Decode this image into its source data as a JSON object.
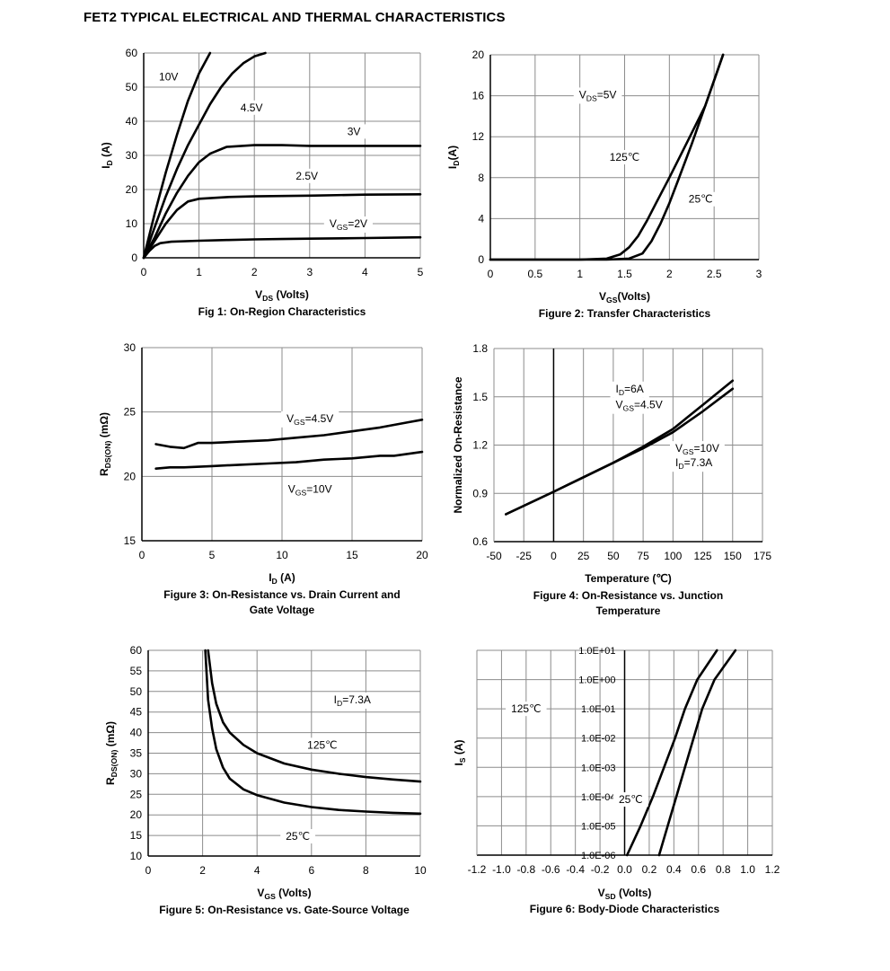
{
  "page": {
    "title": "FET2 TYPICAL ELECTRICAL AND THERMAL CHARACTERISTICS"
  },
  "chart_data": [
    {
      "id": "fig1",
      "type": "line",
      "caption": [
        "Fig 1: On-Region Characteristics"
      ],
      "xlabel": {
        "main": "V",
        "sub": "DS",
        "rest": " (Volts)"
      },
      "ylabel": {
        "main": "I",
        "sub": "D",
        "rest": " (A)"
      },
      "xlim": [
        0,
        5
      ],
      "ylim": [
        0,
        60
      ],
      "xticks": [
        0,
        1,
        2,
        3,
        4,
        5
      ],
      "yticks": [
        0,
        10,
        20,
        30,
        40,
        50,
        60
      ],
      "grid": true,
      "series": [
        {
          "values": [
            [
              0,
              0
            ],
            [
              0.2,
              13
            ],
            [
              0.4,
              25
            ],
            [
              0.6,
              36
            ],
            [
              0.8,
              46
            ],
            [
              1.0,
              54
            ],
            [
              1.2,
              61
            ]
          ]
        },
        {
          "values": [
            [
              0,
              0
            ],
            [
              0.2,
              9
            ],
            [
              0.4,
              18
            ],
            [
              0.6,
              26
            ],
            [
              0.8,
              33
            ],
            [
              1.0,
              39
            ],
            [
              1.2,
              45
            ],
            [
              1.4,
              50
            ],
            [
              1.6,
              54
            ],
            [
              1.8,
              57
            ],
            [
              2.0,
              59
            ],
            [
              2.2,
              60.5
            ]
          ]
        },
        {
          "values": [
            [
              0,
              0
            ],
            [
              0.2,
              6
            ],
            [
              0.4,
              13
            ],
            [
              0.6,
              19
            ],
            [
              0.8,
              24
            ],
            [
              1.0,
              28
            ],
            [
              1.2,
              30.5
            ],
            [
              1.5,
              32.5
            ],
            [
              2.0,
              33
            ],
            [
              2.5,
              33
            ],
            [
              3,
              32.8
            ],
            [
              4,
              32.8
            ],
            [
              5,
              32.8
            ]
          ]
        },
        {
          "values": [
            [
              0,
              0
            ],
            [
              0.2,
              5
            ],
            [
              0.4,
              10
            ],
            [
              0.6,
              14
            ],
            [
              0.8,
              16.5
            ],
            [
              1.0,
              17.3
            ],
            [
              1.5,
              17.8
            ],
            [
              2.0,
              18
            ],
            [
              3,
              18.2
            ],
            [
              4,
              18.5
            ],
            [
              5,
              18.6
            ]
          ]
        },
        {
          "values": [
            [
              0,
              0
            ],
            [
              0.1,
              2
            ],
            [
              0.2,
              3.5
            ],
            [
              0.3,
              4.3
            ],
            [
              0.5,
              4.7
            ],
            [
              1,
              5
            ],
            [
              1.5,
              5.2
            ],
            [
              2,
              5.4
            ],
            [
              2.5,
              5.5
            ],
            [
              3,
              5.6
            ],
            [
              4,
              5.8
            ],
            [
              5,
              6
            ]
          ]
        }
      ],
      "annotations": [
        {
          "text": "10V",
          "x": 0.45,
          "y": 53,
          "anchor": "middle"
        },
        {
          "text": "4.5V",
          "x": 1.95,
          "y": 44,
          "anchor": "middle"
        },
        {
          "text": "3V",
          "x": 3.8,
          "y": 37,
          "anchor": "middle"
        },
        {
          "text": "2.5V",
          "x": 2.95,
          "y": 24,
          "anchor": "middle"
        },
        {
          "main": "V",
          "sub": "GS",
          "rest": "=2V",
          "x": 3.7,
          "y": 10,
          "anchor": "middle"
        }
      ]
    },
    {
      "id": "fig2",
      "type": "line",
      "caption": [
        "Figure 2: Transfer Characteristics"
      ],
      "xlabel": {
        "main": "V",
        "sub": "GS",
        "rest": "(Volts)"
      },
      "ylabel": {
        "main": "I",
        "sub": "D",
        "rest": "(A)"
      },
      "xlim": [
        0,
        3
      ],
      "ylim": [
        0,
        20
      ],
      "xticks": [
        0,
        0.5,
        1,
        1.5,
        2,
        2.5,
        3
      ],
      "yticks": [
        0,
        4,
        8,
        12,
        16,
        20
      ],
      "grid": true,
      "series": [
        {
          "values": [
            [
              0,
              0
            ],
            [
              1.0,
              0
            ],
            [
              1.3,
              0.1
            ],
            [
              1.45,
              0.5
            ],
            [
              1.55,
              1.2
            ],
            [
              1.65,
              2.3
            ],
            [
              1.75,
              3.8
            ],
            [
              1.85,
              5.5
            ],
            [
              2.0,
              8
            ],
            [
              2.2,
              11.5
            ],
            [
              2.4,
              15
            ],
            [
              2.6,
              20
            ]
          ]
        },
        {
          "values": [
            [
              0,
              0
            ],
            [
              1.3,
              0
            ],
            [
              1.55,
              0.1
            ],
            [
              1.7,
              0.6
            ],
            [
              1.8,
              1.8
            ],
            [
              1.9,
              3.5
            ],
            [
              2.0,
              5.5
            ],
            [
              2.1,
              7.8
            ],
            [
              2.25,
              11.3
            ],
            [
              2.4,
              15
            ],
            [
              2.6,
              20
            ]
          ]
        }
      ],
      "annotations": [
        {
          "main": "V",
          "sub": "DS",
          "rest": "=5V",
          "x": 1.2,
          "y": 16.1,
          "anchor": "middle"
        },
        {
          "text": "125℃",
          "x": 1.5,
          "y": 10,
          "anchor": "middle"
        },
        {
          "text": "25℃",
          "x": 2.35,
          "y": 5.9,
          "anchor": "middle"
        }
      ]
    },
    {
      "id": "fig3",
      "type": "line",
      "caption": [
        "Figure 3: On-Resistance vs. Drain Current and",
        "Gate Voltage"
      ],
      "xlabel": {
        "main": "I",
        "sub": "D",
        "rest": " (A)"
      },
      "ylabel": {
        "main": "R",
        "sub": "DS(ON)",
        "rest": " (mΩ)"
      },
      "xlim": [
        0,
        20
      ],
      "ylim": [
        15,
        30
      ],
      "xticks": [
        0,
        5,
        10,
        15,
        20
      ],
      "yticks": [
        15,
        20,
        25,
        30
      ],
      "grid": true,
      "series": [
        {
          "values": [
            [
              1,
              22.5
            ],
            [
              2,
              22.3
            ],
            [
              3,
              22.2
            ],
            [
              4,
              22.6
            ],
            [
              5,
              22.6
            ],
            [
              7,
              22.7
            ],
            [
              9,
              22.8
            ],
            [
              11,
              23
            ],
            [
              13,
              23.2
            ],
            [
              15,
              23.5
            ],
            [
              17,
              23.8
            ],
            [
              19,
              24.2
            ],
            [
              20,
              24.4
            ]
          ]
        },
        {
          "values": [
            [
              1,
              20.6
            ],
            [
              2,
              20.7
            ],
            [
              3,
              20.7
            ],
            [
              5,
              20.8
            ],
            [
              7,
              20.9
            ],
            [
              9,
              21
            ],
            [
              11,
              21.1
            ],
            [
              13,
              21.3
            ],
            [
              15,
              21.4
            ],
            [
              17,
              21.6
            ],
            [
              18,
              21.6
            ],
            [
              20,
              21.9
            ]
          ]
        }
      ],
      "annotations": [
        {
          "main": "V",
          "sub": "GS",
          "rest": "=4.5V",
          "x": 12,
          "y": 24.5,
          "anchor": "middle"
        },
        {
          "main": "V",
          "sub": "GS",
          "rest": "=10V",
          "x": 12,
          "y": 19,
          "anchor": "middle"
        }
      ]
    },
    {
      "id": "fig4",
      "type": "line",
      "caption": [
        "Figure 4: On-Resistance vs. Junction",
        "Temperature"
      ],
      "xlabel": {
        "text": "Temperature (℃)"
      },
      "ylabel": {
        "text": "Normalized On-Resistance"
      },
      "xlim": [
        -50,
        175
      ],
      "ylim": [
        0.6,
        1.8
      ],
      "xticks": [
        -50,
        -25,
        0,
        25,
        50,
        75,
        100,
        125,
        150,
        175
      ],
      "yticks": [
        0.6,
        0.9,
        1.2,
        1.5,
        1.8
      ],
      "ytick_labels": [
        "0.6",
        "0.9",
        "1.2",
        "1.5",
        "1.8"
      ],
      "grid": true,
      "series": [
        {
          "values": [
            [
              -40,
              0.77
            ],
            [
              0,
              0.91
            ],
            [
              25,
              1.0
            ],
            [
              50,
              1.09
            ],
            [
              75,
              1.19
            ],
            [
              100,
              1.3
            ],
            [
              125,
              1.45
            ],
            [
              150,
              1.6
            ]
          ]
        },
        {
          "values": [
            [
              -40,
              0.77
            ],
            [
              0,
              0.91
            ],
            [
              25,
              1.0
            ],
            [
              50,
              1.09
            ],
            [
              75,
              1.18
            ],
            [
              100,
              1.28
            ],
            [
              125,
              1.41
            ],
            [
              150,
              1.55
            ]
          ]
        }
      ],
      "annotations": [
        {
          "main": "I",
          "sub": "D",
          "rest": "=6A",
          "x": 52,
          "y": 1.55,
          "anchor": "start"
        },
        {
          "main": "V",
          "sub": "GS",
          "rest": "=4.5V",
          "x": 52,
          "y": 1.45,
          "anchor": "start"
        },
        {
          "main": "V",
          "sub": "GS",
          "rest": "=10V",
          "x": 102,
          "y": 1.18,
          "anchor": "start"
        },
        {
          "main": "I",
          "sub": "D",
          "rest": "=7.3A",
          "x": 102,
          "y": 1.09,
          "anchor": "start"
        }
      ]
    },
    {
      "id": "fig5",
      "type": "line",
      "caption": [
        "Figure 5: On-Resistance vs. Gate-Source Voltage"
      ],
      "xlabel": {
        "main": "V",
        "sub": "GS",
        "rest": " (Volts)"
      },
      "ylabel": {
        "main": "R",
        "sub": "DS(ON)",
        "rest": " (mΩ)"
      },
      "xlim": [
        0,
        10
      ],
      "ylim": [
        10,
        60
      ],
      "xticks": [
        0,
        2,
        4,
        6,
        8,
        10
      ],
      "yticks": [
        10,
        15,
        20,
        25,
        30,
        35,
        40,
        45,
        50,
        55,
        60
      ],
      "grid": true,
      "series": [
        {
          "values": [
            [
              2.2,
              60
            ],
            [
              2.35,
              52
            ],
            [
              2.5,
              47
            ],
            [
              2.75,
              42.5
            ],
            [
              3,
              40
            ],
            [
              3.5,
              37
            ],
            [
              4,
              35
            ],
            [
              5,
              32.5
            ],
            [
              6,
              31
            ],
            [
              7,
              30
            ],
            [
              8,
              29.2
            ],
            [
              9,
              28.6
            ],
            [
              10,
              28.1
            ]
          ]
        },
        {
          "values": [
            [
              2.1,
              60
            ],
            [
              2.2,
              48
            ],
            [
              2.35,
              41
            ],
            [
              2.5,
              36
            ],
            [
              2.75,
              31.5
            ],
            [
              3,
              28.8
            ],
            [
              3.5,
              26.2
            ],
            [
              4,
              24.8
            ],
            [
              5,
              23
            ],
            [
              6,
              21.9
            ],
            [
              7,
              21.2
            ],
            [
              8,
              20.8
            ],
            [
              9,
              20.5
            ],
            [
              10,
              20.3
            ]
          ]
        }
      ],
      "annotations": [
        {
          "main": "I",
          "sub": "D",
          "rest": "=7.3A",
          "x": 7.5,
          "y": 48,
          "anchor": "middle"
        },
        {
          "text": "125℃",
          "x": 6.4,
          "y": 37,
          "anchor": "middle"
        },
        {
          "text": "25℃",
          "x": 5.5,
          "y": 14.8,
          "anchor": "middle"
        }
      ]
    },
    {
      "id": "fig6",
      "type": "line",
      "ylog": true,
      "caption": [
        "Figure 6: Body-Diode Characteristics"
      ],
      "xlabel": {
        "main": "V",
        "sub": "SD",
        "rest": " (Volts)"
      },
      "ylabel": {
        "main": "I",
        "sub": "S",
        "rest": " (A)"
      },
      "xlim": [
        -1.2,
        1.2
      ],
      "ylim": [
        1e-06,
        10
      ],
      "xticks": [
        -1.2,
        -1.0,
        -0.8,
        -0.6,
        -0.4,
        -0.2,
        0.0,
        0.2,
        0.4,
        0.6,
        0.8,
        1.0,
        1.2
      ],
      "xtick_labels": [
        "-1.2",
        "-1.0",
        "-0.8",
        "-0.6",
        "-0.4",
        "-0.2",
        "0.0",
        "0.2",
        "0.4",
        "0.6",
        "0.8",
        "1.0",
        "1.2"
      ],
      "yticks": [
        1e-06,
        1e-05,
        0.0001,
        0.001,
        0.01,
        0.1,
        1,
        10
      ],
      "ytick_labels": [
        "1.0E-06",
        "1.0E-05",
        "1.0E-04",
        "1.0E-03",
        "1.0E-02",
        "1.0E-01",
        "1.0E+00",
        "1.0E+01"
      ],
      "grid": true,
      "series": [
        {
          "values": [
            [
              0.02,
              1e-06
            ],
            [
              0.13,
              1e-05
            ],
            [
              0.23,
              0.0001
            ],
            [
              0.32,
              0.001
            ],
            [
              0.41,
              0.01
            ],
            [
              0.49,
              0.1
            ],
            [
              0.59,
              1
            ],
            [
              0.75,
              10
            ]
          ]
        },
        {
          "values": [
            [
              0.28,
              1e-06
            ],
            [
              0.35,
              1e-05
            ],
            [
              0.42,
              0.0001
            ],
            [
              0.49,
              0.001
            ],
            [
              0.56,
              0.01
            ],
            [
              0.63,
              0.1
            ],
            [
              0.73,
              1
            ],
            [
              0.9,
              10
            ]
          ]
        }
      ],
      "annotations": [
        {
          "text": "125℃",
          "x": -0.8,
          "y": 0.1,
          "anchor": "middle"
        },
        {
          "text": "25℃",
          "x": 0.05,
          "y": 8e-05,
          "anchor": "middle"
        }
      ]
    }
  ]
}
